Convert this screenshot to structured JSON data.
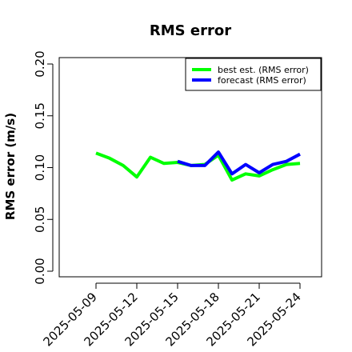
{
  "chart_data": {
    "type": "line",
    "title": "RMS error",
    "xlabel": "",
    "ylabel": "RMS error (m/s)",
    "ylim": [
      0,
      0.2
    ],
    "y_ticks": [
      "0.00",
      "0.05",
      "0.10",
      "0.15",
      "0.20"
    ],
    "x_ticks": [
      "2025-05-09",
      "2025-05-12",
      "2025-05-15",
      "2025-05-18",
      "2025-05-21",
      "2025-05-24"
    ],
    "highlight_tick": "2025-05-15",
    "highlight_color": "#228B22",
    "grid": false,
    "legend_position": "top-right",
    "series": [
      {
        "name": "best est. (RMS error)",
        "color": "#00ff00",
        "points": [
          {
            "x": "2025-05-09",
            "y": 0.114
          },
          {
            "x": "2025-05-10",
            "y": 0.109
          },
          {
            "x": "2025-05-11",
            "y": 0.102
          },
          {
            "x": "2025-05-12",
            "y": 0.091
          },
          {
            "x": "2025-05-13",
            "y": 0.11
          },
          {
            "x": "2025-05-14",
            "y": 0.104
          },
          {
            "x": "2025-05-15",
            "y": 0.105
          },
          {
            "x": "2025-05-16",
            "y": 0.102
          },
          {
            "x": "2025-05-17",
            "y": 0.103
          },
          {
            "x": "2025-05-18",
            "y": 0.112
          },
          {
            "x": "2025-05-19",
            "y": 0.088
          },
          {
            "x": "2025-05-20",
            "y": 0.094
          },
          {
            "x": "2025-05-21",
            "y": 0.092
          },
          {
            "x": "2025-05-22",
            "y": 0.098
          },
          {
            "x": "2025-05-23",
            "y": 0.103
          },
          {
            "x": "2025-05-24",
            "y": 0.104
          }
        ]
      },
      {
        "name": "forecast (RMS error)",
        "color": "#0000ff",
        "points": [
          {
            "x": "2025-05-15",
            "y": 0.106
          },
          {
            "x": "2025-05-16",
            "y": 0.102
          },
          {
            "x": "2025-05-17",
            "y": 0.102
          },
          {
            "x": "2025-05-18",
            "y": 0.115
          },
          {
            "x": "2025-05-19",
            "y": 0.094
          },
          {
            "x": "2025-05-20",
            "y": 0.103
          },
          {
            "x": "2025-05-21",
            "y": 0.095
          },
          {
            "x": "2025-05-22",
            "y": 0.103
          },
          {
            "x": "2025-05-23",
            "y": 0.106
          },
          {
            "x": "2025-05-24",
            "y": 0.113
          }
        ]
      }
    ]
  }
}
